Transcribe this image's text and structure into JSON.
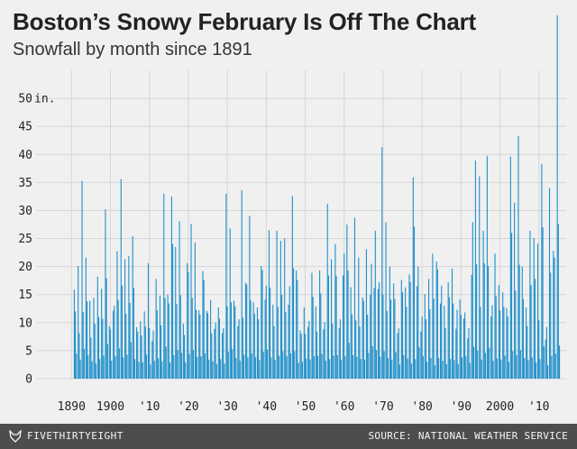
{
  "title": "Boston’s Snowy February Is Off The Chart",
  "subtitle": "Snowfall by month since 1891",
  "footer": {
    "brand": "FIVETHIRTYEIGHT",
    "source": "SOURCE: NATIONAL WEATHER SERVICE"
  },
  "colors": {
    "bar": "#1f8fc9",
    "grid": "#d6d6d6",
    "background": "#f0f0f0",
    "footer": "#4d4d4d"
  },
  "chart_data": {
    "type": "bar",
    "title": "Boston’s Snowy February Is Off The Chart",
    "subtitle": "Snowfall by month since 1891",
    "xlabel": "",
    "ylabel": "",
    "y_unit": "in.",
    "ylim": [
      0,
      55
    ],
    "xlim": [
      1886,
      2017
    ],
    "grid": true,
    "y_ticks": [
      "0",
      "5",
      "10",
      "15",
      "20",
      "25",
      "30",
      "35",
      "40",
      "45",
      "50"
    ],
    "x_ticks": [
      "1890",
      "1900",
      "'10",
      "'20",
      "'30",
      "'40",
      "'50",
      "'60",
      "'70",
      "'80",
      "'90",
      "2000",
      "'10"
    ],
    "x_tick_years": [
      1890,
      1900,
      1910,
      1920,
      1930,
      1940,
      1950,
      1960,
      1970,
      1980,
      1990,
      2000,
      2010
    ],
    "series": [
      {
        "x": [
          1891,
          1892,
          1893,
          1894,
          1895,
          1896,
          1897,
          1898,
          1899,
          1900,
          1901,
          1902,
          1903,
          1904,
          1905,
          1906,
          1907,
          1908,
          1909,
          1910,
          1911,
          1912,
          1913,
          1914,
          1915,
          1916,
          1917,
          1918,
          1919,
          1920,
          1921,
          1922,
          1923,
          1924,
          1925,
          1926,
          1927,
          1928,
          1929,
          1930,
          1931,
          1932,
          1933,
          1934,
          1935,
          1936,
          1937,
          1938,
          1939,
          1940,
          1941,
          1942,
          1943,
          1944,
          1945,
          1946,
          1947,
          1948,
          1949,
          1950,
          1951,
          1952,
          1953,
          1954,
          1955,
          1956,
          1957,
          1958,
          1959,
          1960,
          1961,
          1962,
          1963,
          1964,
          1965,
          1966,
          1967,
          1968,
          1969,
          1970,
          1971,
          1972,
          1973,
          1974,
          1975,
          1976,
          1977,
          1978,
          1979,
          1980,
          1981,
          1982,
          1983,
          1984,
          1985,
          1986,
          1987,
          1988,
          1989,
          1990,
          1991,
          1992,
          1993,
          1994,
          1995,
          1996,
          1997,
          1998,
          1999,
          2000,
          2001,
          2002,
          2003,
          2004,
          2005,
          2006,
          2007,
          2008,
          2009,
          2010,
          2011,
          2012,
          2013,
          2014,
          2015
        ],
        "values": [
          [
            15.9,
            12.0,
            4.5
          ],
          [
            20.1,
            8.1,
            3.4
          ],
          [
            35.3,
            11.9,
            5.3
          ],
          [
            21.6,
            13.8,
            4.2
          ],
          [
            13.9,
            7.3,
            3.1
          ],
          [
            14.4,
            9.8,
            2.7
          ],
          [
            18.2,
            11.0,
            3.5
          ],
          [
            16.0,
            10.7,
            4.1
          ],
          [
            30.2,
            17.9,
            6.2
          ],
          [
            9.4,
            8.8,
            3.2
          ],
          [
            12.1,
            13.0,
            4.0
          ],
          [
            22.7,
            14.0,
            5.4
          ],
          [
            35.6,
            16.6,
            3.8
          ],
          [
            21.3,
            11.6,
            4.3
          ],
          [
            21.9,
            13.5,
            6.5
          ],
          [
            25.4,
            16.2,
            3.5
          ],
          [
            9.2,
            8.4,
            3.0
          ],
          [
            10.2,
            7.7,
            2.9
          ],
          [
            12.0,
            9.3,
            4.3
          ],
          [
            20.6,
            9.0,
            2.5
          ],
          [
            6.7,
            8.6,
            3.2
          ],
          [
            17.8,
            12.2,
            3.6
          ],
          [
            14.8,
            9.5,
            3.1
          ],
          [
            33.0,
            14.4,
            5.7
          ],
          [
            15.0,
            13.4,
            2.9
          ],
          [
            32.5,
            24.0,
            4.2
          ],
          [
            23.5,
            13.3,
            5.1
          ],
          [
            28.1,
            14.9,
            4.6
          ],
          [
            9.8,
            7.8,
            2.9
          ],
          [
            20.6,
            19.0,
            4.4
          ],
          [
            27.6,
            14.4,
            5.1
          ],
          [
            24.3,
            12.3,
            3.9
          ],
          [
            12.2,
            11.4,
            4.0
          ],
          [
            19.2,
            17.6,
            4.5
          ],
          [
            12.1,
            11.7,
            3.4
          ],
          [
            14.0,
            8.1,
            3.1
          ],
          [
            8.9,
            10.0,
            2.6
          ],
          [
            12.7,
            10.7,
            3.5
          ],
          [
            8.1,
            9.0,
            2.7
          ],
          [
            33.0,
            12.9,
            4.8
          ],
          [
            26.8,
            13.6,
            5.3
          ],
          [
            13.9,
            12.9,
            3.7
          ],
          [
            9.4,
            10.6,
            3.2
          ],
          [
            33.6,
            10.9,
            4.3
          ],
          [
            17.1,
            16.8,
            3.8
          ],
          [
            29.0,
            14.0,
            4.5
          ],
          [
            13.6,
            11.6,
            3.8
          ],
          [
            12.7,
            10.6,
            3.3
          ],
          [
            20.1,
            19.4,
            4.8
          ],
          [
            14.1,
            16.6,
            5.2
          ],
          [
            26.5,
            16.2,
            3.8
          ],
          [
            13.2,
            9.4,
            3.3
          ],
          [
            26.4,
            12.8,
            4.1
          ],
          [
            24.6,
            15.0,
            4.9
          ],
          [
            25.0,
            11.9,
            4.0
          ],
          [
            13.2,
            16.5,
            4.5
          ],
          [
            32.6,
            19.7,
            4.9
          ],
          [
            19.3,
            17.6,
            2.8
          ],
          [
            8.6,
            8.0,
            3.0
          ],
          [
            12.7,
            8.0,
            3.6
          ],
          [
            9.2,
            10.3,
            3.4
          ],
          [
            18.9,
            14.6,
            4.0
          ],
          [
            12.9,
            8.4,
            4.1
          ],
          [
            19.3,
            15.2,
            4.4
          ],
          [
            8.8,
            10.1,
            3.2
          ],
          [
            31.2,
            18.4,
            3.5
          ],
          [
            21.3,
            9.8,
            4.1
          ],
          [
            24.0,
            18.3,
            4.2
          ],
          [
            9.0,
            10.6,
            3.3
          ],
          [
            18.4,
            22.3,
            4.0
          ],
          [
            27.5,
            19.3,
            6.4
          ],
          [
            16.3,
            11.5,
            4.2
          ],
          [
            28.7,
            10.4,
            3.9
          ],
          [
            21.6,
            9.3,
            3.5
          ],
          [
            14.5,
            13.9,
            3.4
          ],
          [
            23.1,
            11.4,
            4.6
          ],
          [
            15.0,
            20.5,
            5.8
          ],
          [
            16.2,
            26.4,
            5.1
          ],
          [
            16.0,
            17.2,
            3.9
          ],
          [
            41.3,
            15.0,
            4.9
          ],
          [
            27.9,
            12.1,
            3.7
          ],
          [
            20.0,
            14.1,
            3.4
          ],
          [
            17.0,
            14.2,
            4.7
          ],
          [
            8.1,
            9.0,
            2.5
          ],
          [
            17.6,
            15.4,
            4.2
          ],
          [
            16.3,
            12.8,
            3.6
          ],
          [
            18.6,
            17.2,
            2.7
          ],
          [
            35.9,
            27.1,
            3.5
          ],
          [
            16.5,
            20.0,
            5.6
          ],
          [
            8.4,
            11.1,
            4.0
          ],
          [
            15.1,
            10.6,
            3.0
          ],
          [
            17.8,
            12.4,
            3.7
          ],
          [
            22.3,
            14.3,
            2.4
          ],
          [
            20.9,
            19.5,
            3.7
          ],
          [
            13.4,
            16.6,
            3.2
          ],
          [
            13.0,
            9.0,
            2.6
          ],
          [
            17.2,
            14.5,
            3.5
          ],
          [
            19.6,
            13.4,
            3.3
          ],
          [
            8.9,
            12.3,
            2.6
          ],
          [
            14.1,
            11.4,
            3.8
          ],
          [
            10.7,
            11.8,
            4.0
          ],
          [
            7.2,
            9.0,
            2.8
          ],
          [
            18.5,
            27.9,
            5.7
          ],
          [
            38.9,
            20.4,
            5.0
          ],
          [
            36.1,
            12.8,
            3.4
          ],
          [
            26.4,
            20.6,
            4.6
          ],
          [
            39.7,
            20.1,
            5.5
          ],
          [
            11.1,
            13.1,
            3.2
          ],
          [
            22.3,
            14.7,
            3.6
          ],
          [
            16.7,
            12.2,
            3.4
          ],
          [
            15.4,
            12.8,
            4.1
          ],
          [
            12.6,
            11.1,
            3.0
          ],
          [
            39.6,
            26.0,
            4.9
          ],
          [
            31.4,
            15.7,
            4.2
          ],
          [
            43.3,
            20.3,
            5.1
          ],
          [
            20.0,
            14.2,
            3.7
          ],
          [
            12.7,
            9.4,
            3.3
          ],
          [
            26.4,
            16.7,
            3.8
          ],
          [
            25.1,
            17.8,
            2.9
          ],
          [
            24.1,
            10.4,
            3.5
          ],
          [
            38.3,
            27.0,
            5.8
          ],
          [
            7.0,
            9.2,
            2.4
          ],
          [
            34.0,
            18.9,
            4.1
          ],
          [
            22.8,
            21.6,
            4.5
          ],
          [
            64.8,
            27.6,
            5.9
          ]
        ]
      }
    ]
  }
}
